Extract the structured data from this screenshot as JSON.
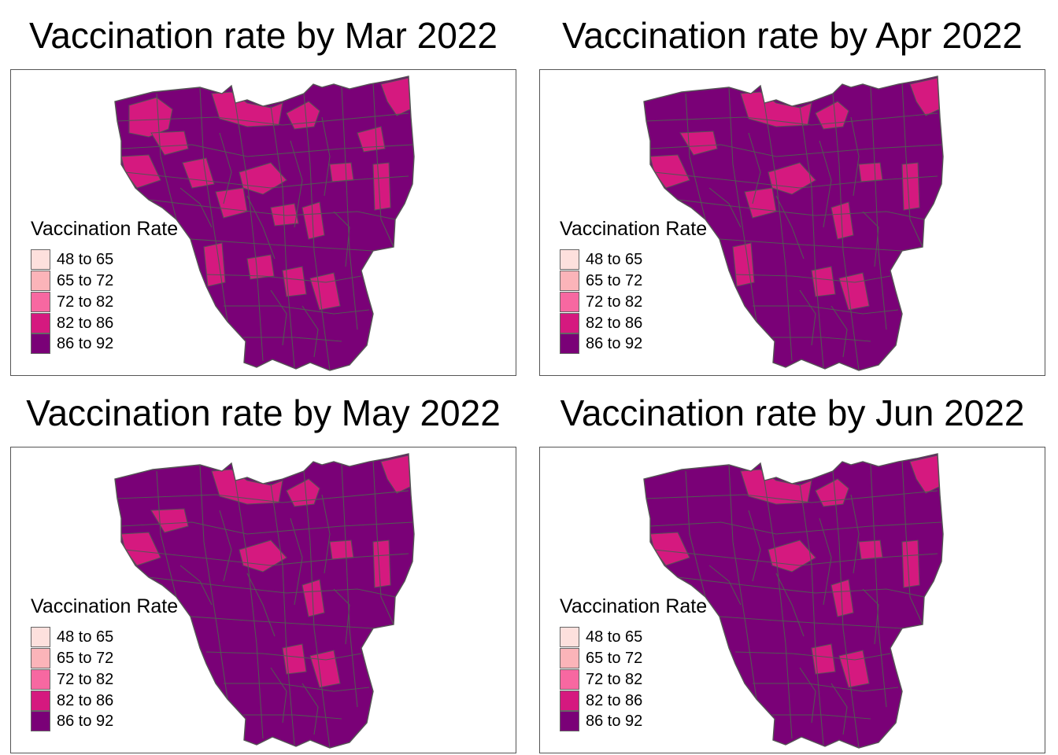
{
  "colors": {
    "boundary": "#555555",
    "frame": "#555555",
    "classes": [
      "#fde0dd",
      "#fbb4b9",
      "#f768a1",
      "#d5197f",
      "#7a0177"
    ]
  },
  "legend": {
    "title": "Vaccination Rate",
    "classes": [
      {
        "label": "48 to 65",
        "color": "#fde0dd"
      },
      {
        "label": "65 to 72",
        "color": "#fbb4b9"
      },
      {
        "label": "72 to 82",
        "color": "#f768a1"
      },
      {
        "label": "82 to 86",
        "color": "#d5197f"
      },
      {
        "label": "86 to 92",
        "color": "#7a0177"
      }
    ]
  },
  "panels": [
    {
      "title": "Vaccination rate by Mar 2022",
      "highlight_districts": [
        "nw-coast",
        "north-port",
        "north-center",
        "northeast-tip",
        "west-a",
        "west-b",
        "west-c",
        "center-a",
        "center-b",
        "center-c",
        "center-d",
        "east-strip-a",
        "east-strip-b",
        "east-strip-c",
        "south-a",
        "south-b",
        "south-c",
        "south-d"
      ]
    },
    {
      "title": "Vaccination rate by Apr 2022",
      "highlight_districts": [
        "north-port",
        "north-center",
        "northeast-tip",
        "west-a",
        "west-b",
        "center-a",
        "center-b",
        "center-c",
        "east-strip-a",
        "east-strip-c",
        "south-a",
        "south-b",
        "south-c"
      ]
    },
    {
      "title": "Vaccination rate by May 2022",
      "highlight_districts": [
        "north-port",
        "north-center",
        "northeast-tip",
        "west-a",
        "west-b",
        "center-a",
        "center-c",
        "east-strip-a",
        "east-strip-c",
        "south-b",
        "south-c"
      ]
    },
    {
      "title": "Vaccination rate by Jun 2022",
      "highlight_districts": [
        "north-port",
        "north-center",
        "northeast-tip",
        "west-a",
        "center-a",
        "center-c",
        "east-strip-a",
        "east-strip-c",
        "south-b",
        "south-c"
      ]
    }
  ]
}
